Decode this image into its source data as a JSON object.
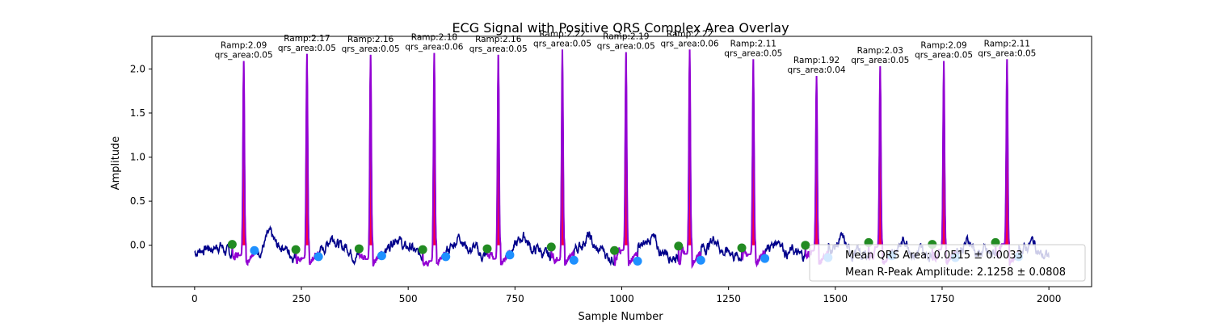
{
  "chart_data": {
    "type": "line",
    "title": "ECG Signal with Positive QRS Complex Area Overlay",
    "xlabel": "Sample Number",
    "ylabel": "Amplitude",
    "xlim": [
      -100,
      2100
    ],
    "ylim": [
      -0.47,
      2.37
    ],
    "x_ticks": [
      0,
      250,
      500,
      750,
      1000,
      1250,
      1500,
      1750,
      2000
    ],
    "x_tick_labels": [
      "0",
      "250",
      "500",
      "750",
      "1000",
      "1250",
      "1500",
      "1750",
      "2000"
    ],
    "y_ticks": [
      0.0,
      0.5,
      1.0,
      1.5,
      2.0
    ],
    "y_tick_labels": [
      "0.0",
      "0.5",
      "1.0",
      "1.5",
      "2.0"
    ],
    "grid": false,
    "colors": {
      "signal": "#00008b",
      "qrs_segment": "#9400d3",
      "qrs_fill": "#ff0040",
      "q_point": "#228b22",
      "s_point": "#1e90ff"
    },
    "beats": [
      {
        "r_x": 115,
        "r_amp": 2.09,
        "ramp_label": "Ramp:2.09",
        "area_label": "qrs_area:0.05",
        "q_x": 88,
        "q_y": 0.01,
        "s_x": 140,
        "s_y": -0.06
      },
      {
        "r_x": 263,
        "r_amp": 2.17,
        "ramp_label": "Ramp:2.17",
        "area_label": "qrs_area:0.05",
        "q_x": 237,
        "q_y": -0.05,
        "s_x": 290,
        "s_y": -0.13
      },
      {
        "r_x": 412,
        "r_amp": 2.16,
        "ramp_label": "Ramp:2.16",
        "area_label": "qrs_area:0.05",
        "q_x": 385,
        "q_y": -0.04,
        "s_x": 438,
        "s_y": -0.12
      },
      {
        "r_x": 561,
        "r_amp": 2.18,
        "ramp_label": "Ramp:2.18",
        "area_label": "qrs_area:0.06",
        "q_x": 534,
        "q_y": -0.05,
        "s_x": 588,
        "s_y": -0.13
      },
      {
        "r_x": 711,
        "r_amp": 2.16,
        "ramp_label": "Ramp:2.16",
        "area_label": "qrs_area:0.05",
        "q_x": 685,
        "q_y": -0.04,
        "s_x": 738,
        "s_y": -0.11
      },
      {
        "r_x": 861,
        "r_amp": 2.22,
        "ramp_label": "Ramp:2.22",
        "area_label": "qrs_area:0.05",
        "q_x": 835,
        "q_y": -0.02,
        "s_x": 888,
        "s_y": -0.17
      },
      {
        "r_x": 1010,
        "r_amp": 2.19,
        "ramp_label": "Ramp:2.19",
        "area_label": "qrs_area:0.05",
        "q_x": 983,
        "q_y": -0.06,
        "s_x": 1037,
        "s_y": -0.18
      },
      {
        "r_x": 1159,
        "r_amp": 2.22,
        "ramp_label": "Ramp:2.22",
        "area_label": "qrs_area:0.06",
        "q_x": 1133,
        "q_y": -0.01,
        "s_x": 1185,
        "s_y": -0.17
      },
      {
        "r_x": 1308,
        "r_amp": 2.11,
        "ramp_label": "Ramp:2.11",
        "area_label": "qrs_area:0.05",
        "q_x": 1281,
        "q_y": -0.03,
        "s_x": 1335,
        "s_y": -0.15
      },
      {
        "r_x": 1456,
        "r_amp": 1.92,
        "ramp_label": "Ramp:1.92",
        "area_label": "qrs_area:0.04",
        "q_x": 1430,
        "q_y": 0.0,
        "s_x": 1483,
        "s_y": -0.14
      },
      {
        "r_x": 1605,
        "r_amp": 2.03,
        "ramp_label": "Ramp:2.03",
        "area_label": "qrs_area:0.05",
        "q_x": 1578,
        "q_y": 0.03,
        "s_x": 1632,
        "s_y": -0.12
      },
      {
        "r_x": 1754,
        "r_amp": 2.09,
        "ramp_label": "Ramp:2.09",
        "area_label": "qrs_area:0.05",
        "q_x": 1727,
        "q_y": 0.01,
        "s_x": 1781,
        "s_y": -0.14
      },
      {
        "r_x": 1902,
        "r_amp": 2.11,
        "ramp_label": "Ramp:2.11",
        "area_label": "qrs_area:0.05",
        "q_x": 1875,
        "q_y": 0.03,
        "s_x": 1929,
        "s_y": -0.13
      }
    ],
    "legend": {
      "placement": "lower-right",
      "entries": [
        "Mean QRS Area: 0.0515 ± 0.0033",
        "Mean R-Peak Amplitude: 2.1258 ± 0.0808"
      ]
    },
    "signal_range": [
      0,
      2000
    ]
  }
}
